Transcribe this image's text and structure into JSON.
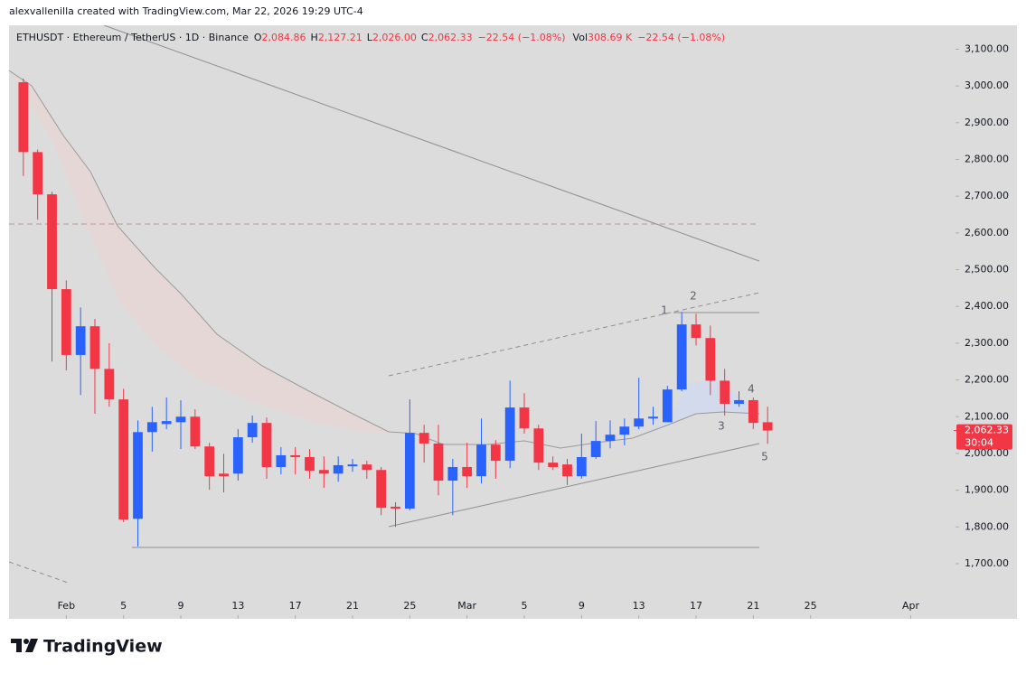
{
  "attribution": "alexvallenilla created with TradingView.com, Mar 22, 2026 19:29 UTC-4",
  "header": {
    "symbol": "ETHUSDT · Ethereum / TetherUS · 1D · Binance",
    "fields": [
      {
        "label": "O",
        "value": "2,084.86"
      },
      {
        "label": "H",
        "value": "2,127.21"
      },
      {
        "label": "L",
        "value": "2,026.00"
      },
      {
        "label": "C",
        "value": "2,062.33"
      }
    ],
    "change": "−22.54 (−1.08%)",
    "volume_label": "Vol",
    "volume": "308.69 K",
    "volume_change": "−22.54 (−1.08%)"
  },
  "footer": "TradingView",
  "chart_data": {
    "type": "candlestick",
    "x": [
      "2026-01-29",
      "2026-01-30",
      "2026-01-31",
      "2026-02-01",
      "2026-02-02",
      "2026-02-03",
      "2026-02-04",
      "2026-02-05",
      "2026-02-06",
      "2026-02-07",
      "2026-02-08",
      "2026-02-09",
      "2026-02-10",
      "2026-02-11",
      "2026-02-12",
      "2026-02-13",
      "2026-02-14",
      "2026-02-15",
      "2026-02-16",
      "2026-02-17",
      "2026-02-18",
      "2026-02-19",
      "2026-02-20",
      "2026-02-21",
      "2026-02-22",
      "2026-02-23",
      "2026-02-24",
      "2026-02-25",
      "2026-02-26",
      "2026-02-27",
      "2026-02-28",
      "2026-03-01",
      "2026-03-02",
      "2026-03-03",
      "2026-03-04",
      "2026-03-05",
      "2026-03-06",
      "2026-03-07",
      "2026-03-08",
      "2026-03-09",
      "2026-03-10",
      "2026-03-11",
      "2026-03-12",
      "2026-03-13",
      "2026-03-14",
      "2026-03-15",
      "2026-03-16",
      "2026-03-17",
      "2026-03-18",
      "2026-03-19",
      "2026-03-20",
      "2026-03-21",
      "2026-03-22"
    ],
    "open": [
      3010,
      2820,
      2705,
      2447,
      2268,
      2346,
      2230,
      2147,
      1822,
      2058,
      2080,
      2085,
      2100,
      2019,
      1945,
      1945,
      2044,
      2083,
      1963,
      1995,
      1990,
      1955,
      1945,
      1965,
      1970,
      1955,
      1855,
      1850,
      2056,
      2027,
      1926,
      1963,
      1938,
      2024,
      1980,
      2125,
      2068,
      1975,
      1970,
      1938,
      1990,
      2034,
      2051,
      2073,
      2095,
      2085,
      2174,
      2351,
      2314,
      2198,
      2135,
      2145,
      2084.86
    ],
    "high": [
      3020,
      2827,
      2712,
      2471,
      2397,
      2366,
      2300,
      2176,
      2090,
      2127,
      2152,
      2145,
      2120,
      2029,
      1999,
      2066,
      2103,
      2098,
      2017,
      2017,
      2012,
      1992,
      1992,
      1985,
      1980,
      1963,
      1867,
      2147,
      2078,
      2078,
      1985,
      2029,
      2095,
      2036,
      2198,
      2164,
      2078,
      1992,
      1985,
      2054,
      2088,
      2090,
      2095,
      2206,
      2127,
      2184,
      2385,
      2380,
      2348,
      2230,
      2169,
      2152,
      2127.21
    ],
    "low": [
      2755,
      2636,
      2250,
      2226,
      2159,
      2108,
      2127,
      1813,
      1747,
      2005,
      2066,
      2012,
      2012,
      1901,
      1894,
      1926,
      2029,
      1931,
      1943,
      1943,
      1931,
      1906,
      1923,
      1950,
      1931,
      1832,
      1800,
      1845,
      1975,
      1886,
      1832,
      1906,
      1918,
      1931,
      1960,
      2054,
      1955,
      1955,
      1914,
      1931,
      1985,
      2014,
      2022,
      2066,
      2078,
      2086,
      2169,
      2294,
      2159,
      2103,
      2127,
      2066,
      2026.0
    ],
    "close": [
      2820,
      2705,
      2447,
      2268,
      2346,
      2230,
      2147,
      1820,
      2058,
      2085,
      2088,
      2100,
      2019,
      1938,
      1938,
      2044,
      2083,
      1963,
      1995,
      1990,
      1953,
      1945,
      1968,
      1970,
      1955,
      1852,
      1850,
      2056,
      2027,
      1926,
      1963,
      1938,
      2024,
      1980,
      2125,
      2068,
      1975,
      1963,
      1938,
      1990,
      2034,
      2051,
      2073,
      2095,
      2100,
      2174,
      2351,
      2314,
      2198,
      2135,
      2145,
      2083,
      2062.33
    ],
    "up_color": "#2962ff",
    "down_color": "#f23645",
    "xlim": [
      "2026-01-28",
      "2026-04-04"
    ],
    "xticks": [
      {
        "value": "2026-02-01",
        "label": "Feb"
      },
      {
        "value": "2026-02-05",
        "label": "5"
      },
      {
        "value": "2026-02-09",
        "label": "9"
      },
      {
        "value": "2026-02-13",
        "label": "13"
      },
      {
        "value": "2026-02-17",
        "label": "17"
      },
      {
        "value": "2026-02-21",
        "label": "21"
      },
      {
        "value": "2026-02-25",
        "label": "25"
      },
      {
        "value": "2026-03-01",
        "label": "Mar"
      },
      {
        "value": "2026-03-05",
        "label": "5"
      },
      {
        "value": "2026-03-09",
        "label": "9"
      },
      {
        "value": "2026-03-13",
        "label": "13"
      },
      {
        "value": "2026-03-17",
        "label": "17"
      },
      {
        "value": "2026-03-21",
        "label": "21"
      },
      {
        "value": "2026-03-25",
        "label": "25"
      },
      {
        "value": "2026-04-01",
        "label": "Apr"
      }
    ],
    "ylim": [
      1550,
      3165
    ],
    "yticks": [
      {
        "value": 1700,
        "label": "1,700.00"
      },
      {
        "value": 1800,
        "label": "1,800.00"
      },
      {
        "value": 1900,
        "label": "1,900.00"
      },
      {
        "value": 2000,
        "label": "2,000.00"
      },
      {
        "value": 2100,
        "label": "2,100.00"
      },
      {
        "value": 2200,
        "label": "2,200.00"
      },
      {
        "value": 2300,
        "label": "2,300.00"
      },
      {
        "value": 2400,
        "label": "2,400.00"
      },
      {
        "value": 2500,
        "label": "2,500.00"
      },
      {
        "value": 2600,
        "label": "2,600.00"
      },
      {
        "value": 2700,
        "label": "2,700.00"
      },
      {
        "value": 2800,
        "label": "2,800.00"
      },
      {
        "value": 2900,
        "label": "2,900.00"
      },
      {
        "value": 3000,
        "label": "3,000.00"
      },
      {
        "value": 3100,
        "label": "3,100.00"
      }
    ],
    "last_price": {
      "value": 2062.33,
      "label": "2,062.33"
    },
    "countdown": "30:04",
    "annotations": [
      "1",
      "2",
      "3",
      "4",
      "5"
    ]
  }
}
